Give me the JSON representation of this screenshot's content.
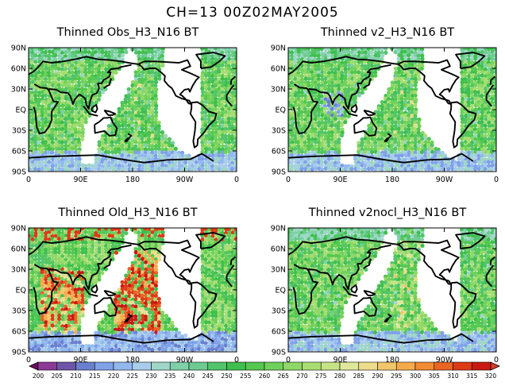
{
  "page": {
    "title": "CH=13    00Z02MAY2005"
  },
  "axes": {
    "lat_ticks": [
      "90N",
      "60N",
      "30N",
      "EQ",
      "30S",
      "60S",
      "90S"
    ],
    "lon_ticks": [
      "0",
      "90E",
      "180",
      "90W",
      "0"
    ]
  },
  "panels": [
    {
      "title": "Thinned Obs_H3_N16 BT",
      "field": "obs"
    },
    {
      "title": "Thinned v2_H3_N16 BT",
      "field": "v2"
    },
    {
      "title": "Thinned Old_H3_N16 BT",
      "field": "old"
    },
    {
      "title": "Thinned v2nocl_H3_N16 BT",
      "field": "v2nocl"
    }
  ],
  "colorbar": {
    "labels": [
      "200",
      "205",
      "210",
      "215",
      "220",
      "225",
      "230",
      "235",
      "240",
      "245",
      "250",
      "255",
      "260",
      "265",
      "270",
      "275",
      "280",
      "285",
      "290",
      "295",
      "300",
      "305",
      "310",
      "315",
      "320"
    ],
    "colors": [
      "#6a0d5c",
      "#8a3a95",
      "#6e55a8",
      "#6b7fcf",
      "#7fa1e8",
      "#92b8ef",
      "#a8cdea",
      "#9ed6c8",
      "#7fd0a8",
      "#6ccc90",
      "#52c46b",
      "#3fbf4e",
      "#55c84f",
      "#6fd15a",
      "#8fd867",
      "#a9dd74",
      "#c6e384",
      "#dfe89a",
      "#ecdc8c",
      "#f2c66c",
      "#f5ab4b",
      "#f28b33",
      "#ea6424",
      "#dd3a17",
      "#c81a10",
      "#d83a2a"
    ]
  }
}
